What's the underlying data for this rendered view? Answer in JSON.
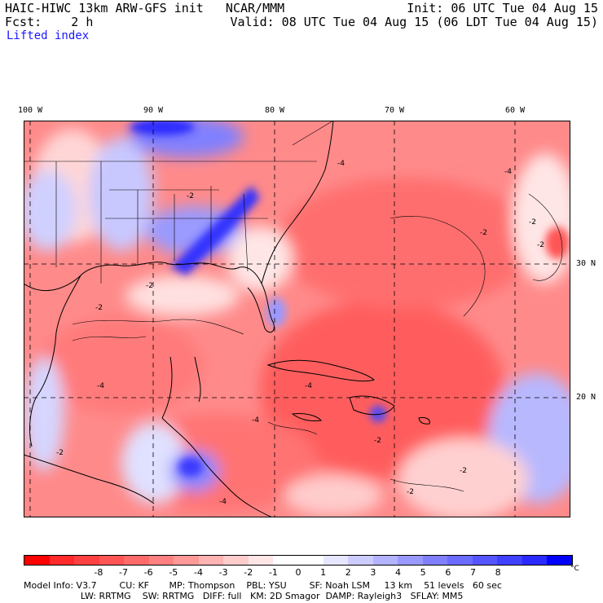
{
  "header": {
    "model": "HAIC-HIWC 13km ARW-GFS init   NCAR/MMM",
    "forecast": "Fcst:    2 h",
    "field": "Lifted index",
    "init": "Init: 06 UTC Tue 04 Aug 15",
    "valid": "Valid: 08 UTC Tue 04 Aug 15 (06 LDT Tue 04 Aug 15)"
  },
  "map": {
    "lon_labels": [
      "100 W",
      "90 W",
      "80 W",
      "70 W",
      "60 W"
    ],
    "lat_labels": [
      "30 N",
      "20 N"
    ],
    "contour_labels": [
      "-4",
      "-2",
      "-2",
      "-4",
      "-2",
      "-2",
      "-4",
      "-2",
      "-4",
      "-2",
      "-2",
      "-4",
      "-2",
      "-2",
      "-2",
      "-4"
    ]
  },
  "colorbar": {
    "colors": [
      "#ff0000",
      "#ff2a2a",
      "#ff4040",
      "#ff5555",
      "#ff6b6b",
      "#ff8080",
      "#ff9999",
      "#ffb3b3",
      "#ffcccc",
      "#ffe6e6",
      "#ffffff",
      "#ffffff",
      "#e6e6ff",
      "#ccccff",
      "#b3b3ff",
      "#9999ff",
      "#8080ff",
      "#6b6bff",
      "#5555ff",
      "#4040ff",
      "#2a2aff",
      "#0000ff"
    ],
    "labels": [
      "-8",
      "-7",
      "-6",
      "-5",
      "-4",
      "-3",
      "-2",
      "-1",
      "0",
      "1",
      "2",
      "3",
      "4",
      "5",
      "6",
      "7",
      "8"
    ],
    "unit": "°C"
  },
  "footer": {
    "line1": "Model Info: V3.7        CU: KF       MP: Thompson    PBL: YSU        SF: Noah LSM     13 km    51 levels   60 sec",
    "line2": "                    LW: RRTMG    SW: RRTMG   DIFF: full   KM: 2D Smagor  DAMP: Rayleigh3   SFLAY: MM5"
  }
}
